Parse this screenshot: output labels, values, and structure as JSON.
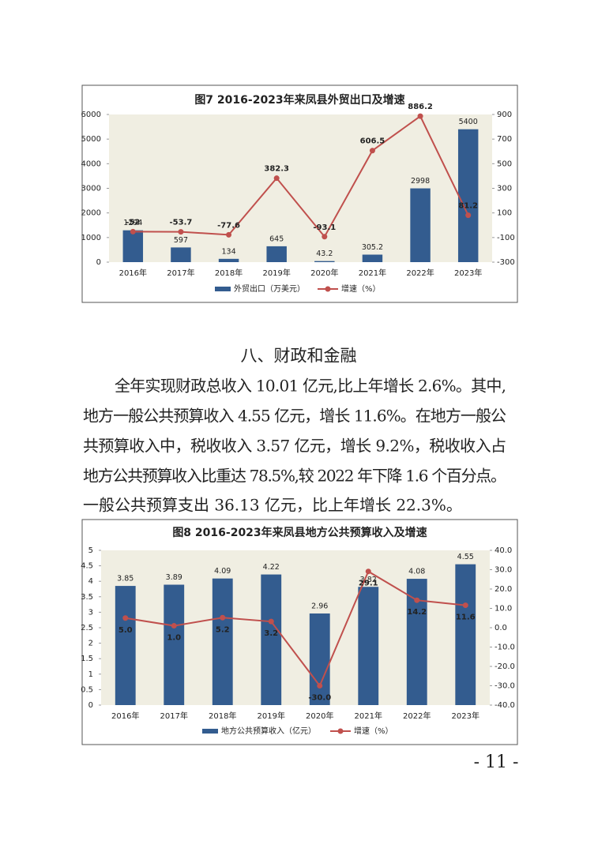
{
  "chart_data": [
    {
      "type": "combo",
      "title": "图7  2016-2023年来凤县外贸出口及增速",
      "categories": [
        "2016年",
        "2017年",
        "2018年",
        "2019年",
        "2020年",
        "2021年",
        "2022年",
        "2023年"
      ],
      "series": [
        {
          "name": "外贸出口（万美元）",
          "type": "bar",
          "color": "#335c8f",
          "values": [
            1294,
            597,
            134,
            645,
            43.2,
            305.2,
            2998,
            5400
          ]
        },
        {
          "name": "增速（%）",
          "type": "line",
          "axis": "y2",
          "color": "#c0504d",
          "values": [
            -52,
            -53.7,
            -77.6,
            382.3,
            -93.1,
            606.5,
            886.2,
            81.2
          ]
        }
      ],
      "ylim": [
        0,
        6000
      ],
      "yticks": [
        0,
        1000,
        2000,
        3000,
        4000,
        5000,
        6000
      ],
      "y2lim": [
        -300,
        900
      ],
      "y2ticks": [
        -300,
        -100,
        100,
        300,
        500,
        700,
        900
      ],
      "plot_background": "#f0eee2"
    },
    {
      "type": "combo",
      "title": "图8  2016-2023年来凤县地方公共预算收入及增速",
      "categories": [
        "2016年",
        "2017年",
        "2018年",
        "2019年",
        "2020年",
        "2021年",
        "2022年",
        "2023年"
      ],
      "series": [
        {
          "name": "地方公共预算收入（亿元）",
          "type": "bar",
          "color": "#335c8f",
          "values": [
            3.85,
            3.89,
            4.09,
            4.22,
            2.96,
            3.82,
            4.08,
            4.55
          ]
        },
        {
          "name": "增速（%）",
          "type": "line",
          "axis": "y2",
          "color": "#c0504d",
          "values": [
            5.0,
            1.0,
            5.2,
            3.2,
            -30.0,
            29.1,
            14.2,
            11.6
          ],
          "value_labels": [
            "5.0",
            "1.0",
            "5.2",
            "3.2",
            "-30.0",
            "29.1",
            "14.2",
            "11.6"
          ]
        }
      ],
      "ylim": [
        0,
        5
      ],
      "yticks": [
        0,
        0.5,
        1,
        1.5,
        2,
        2.5,
        3,
        3.5,
        4,
        4.5,
        5
      ],
      "y2lim": [
        -40,
        40
      ],
      "y2ticks": [
        {
          "value": -40,
          "label": "-40.0"
        },
        {
          "value": -30,
          "label": "-30.0"
        },
        {
          "value": -20,
          "label": "-20.0"
        },
        {
          "value": -10,
          "label": "-10.0"
        },
        {
          "value": 0,
          "label": "0.0"
        },
        {
          "value": 10,
          "label": "10.0"
        },
        {
          "value": 20,
          "label": "20.0"
        },
        {
          "value": 30,
          "label": "30.0"
        },
        {
          "value": 40,
          "label": "40.0"
        }
      ],
      "plot_background": "#f0eee2"
    }
  ],
  "section": {
    "heading": "八、财政和金融",
    "lines": [
      "全年实现财政总收入 10.01 亿元,比上年增长 2.6%。其中,",
      "地方一般公共预算收入 4.55 亿元，增长 11.6%。在地方一般公",
      "共预算收入中，税收收入 3.57 亿元，增长 9.2%，税收收入占",
      "地方公共预算收入比重达 78.5%,较 2022 年下降 1.6 个百分点。",
      "一般公共预算支出 36.13 亿元，比上年增长 22.3%。"
    ]
  },
  "page_number": "- 11 -"
}
